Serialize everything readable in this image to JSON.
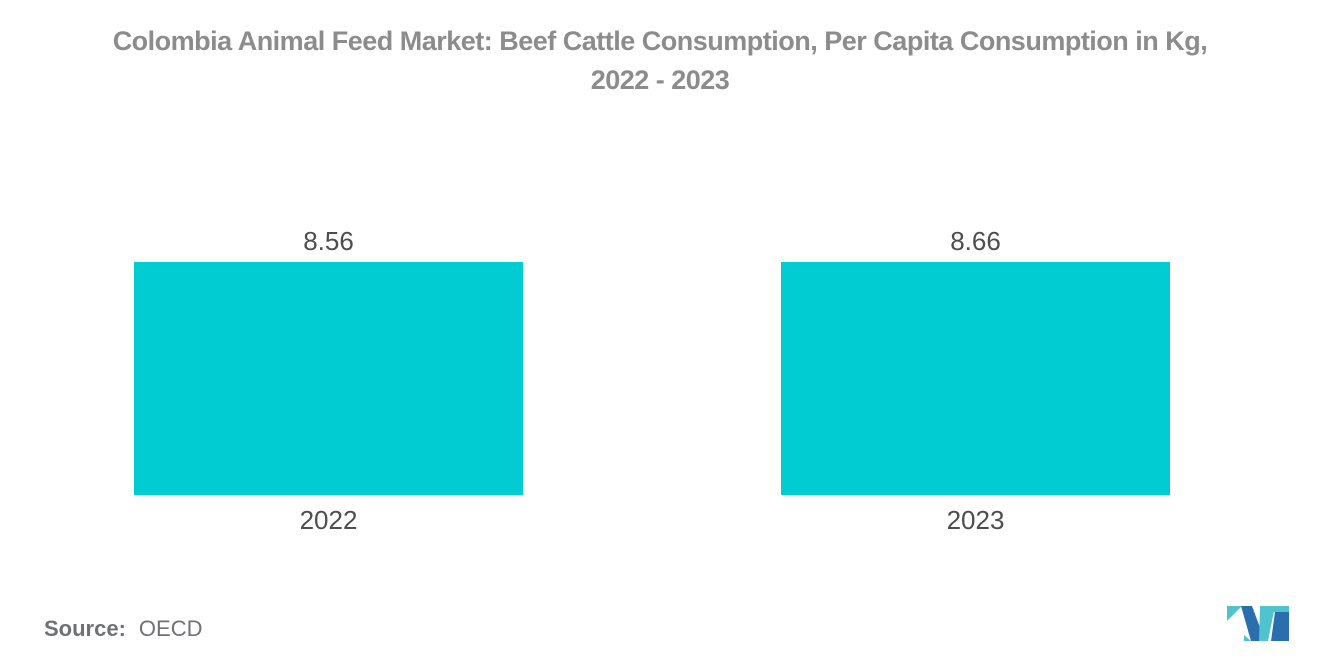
{
  "title": {
    "line1": "Colombia Animal Feed Market: Beef Cattle Consumption, Per Capita Consumption in Kg,",
    "line2": "2022 - 2023"
  },
  "chart_data": {
    "type": "bar",
    "title": "Colombia Animal Feed Market: Beef Cattle Consumption, Per Capita Consumption in Kg, 2022 - 2023",
    "categories": [
      "2022",
      "2023"
    ],
    "values": [
      8.56,
      8.66
    ],
    "value_labels": [
      "8.56",
      "8.66"
    ],
    "unit": "Kg per capita",
    "bar_color": "#00CCD2",
    "grid": false,
    "axes_visible": false,
    "legend": "none",
    "value_label_position": "above-bar",
    "ylim": [
      0,
      9.8
    ]
  },
  "source": {
    "label": "Source:",
    "value": "OECD"
  },
  "logo": {
    "name": "mordor-intelligence-logo",
    "colors": {
      "teal": "#4FC4CE",
      "blue": "#2A6EAE"
    }
  }
}
